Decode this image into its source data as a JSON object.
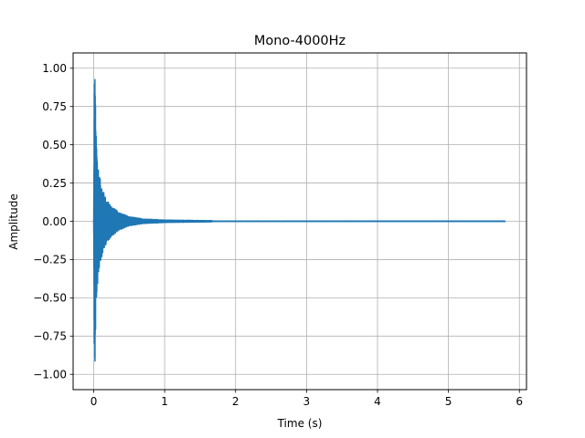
{
  "chart_data": {
    "type": "line",
    "title": "Mono-4000Hz",
    "xlabel": "Time (s)",
    "ylabel": "Amplitude",
    "xlim": [
      -0.29,
      6.1
    ],
    "ylim": [
      -1.1,
      1.1
    ],
    "grid": true,
    "xticks": [
      0,
      1,
      2,
      3,
      4,
      5,
      6
    ],
    "xtick_labels": [
      "0",
      "1",
      "2",
      "3",
      "4",
      "5",
      "6"
    ],
    "yticks": [
      1.0,
      0.75,
      0.5,
      0.25,
      0.0,
      -0.25,
      -0.5,
      -0.75,
      -1.0
    ],
    "ytick_labels": [
      "1.00",
      "0.75",
      "0.50",
      "0.25",
      "0.00",
      "−0.25",
      "−0.50",
      "−0.75",
      "−1.00"
    ],
    "series": [
      {
        "color": "#1f77b4",
        "duration": 5.8,
        "sample_rate": 4000,
        "envelope": [
          [
            0.0,
            0.02
          ],
          [
            0.01,
            0.99
          ],
          [
            0.02,
            0.98
          ],
          [
            0.03,
            0.6
          ],
          [
            0.05,
            0.44
          ],
          [
            0.08,
            0.3
          ],
          [
            0.12,
            0.22
          ],
          [
            0.18,
            0.14
          ],
          [
            0.25,
            0.1
          ],
          [
            0.35,
            0.06
          ],
          [
            0.5,
            0.03
          ],
          [
            0.7,
            0.015
          ],
          [
            1.0,
            0.008
          ],
          [
            1.65,
            0.004
          ],
          [
            1.7,
            0.0008
          ],
          [
            5.8,
            0.0005
          ]
        ]
      }
    ]
  }
}
